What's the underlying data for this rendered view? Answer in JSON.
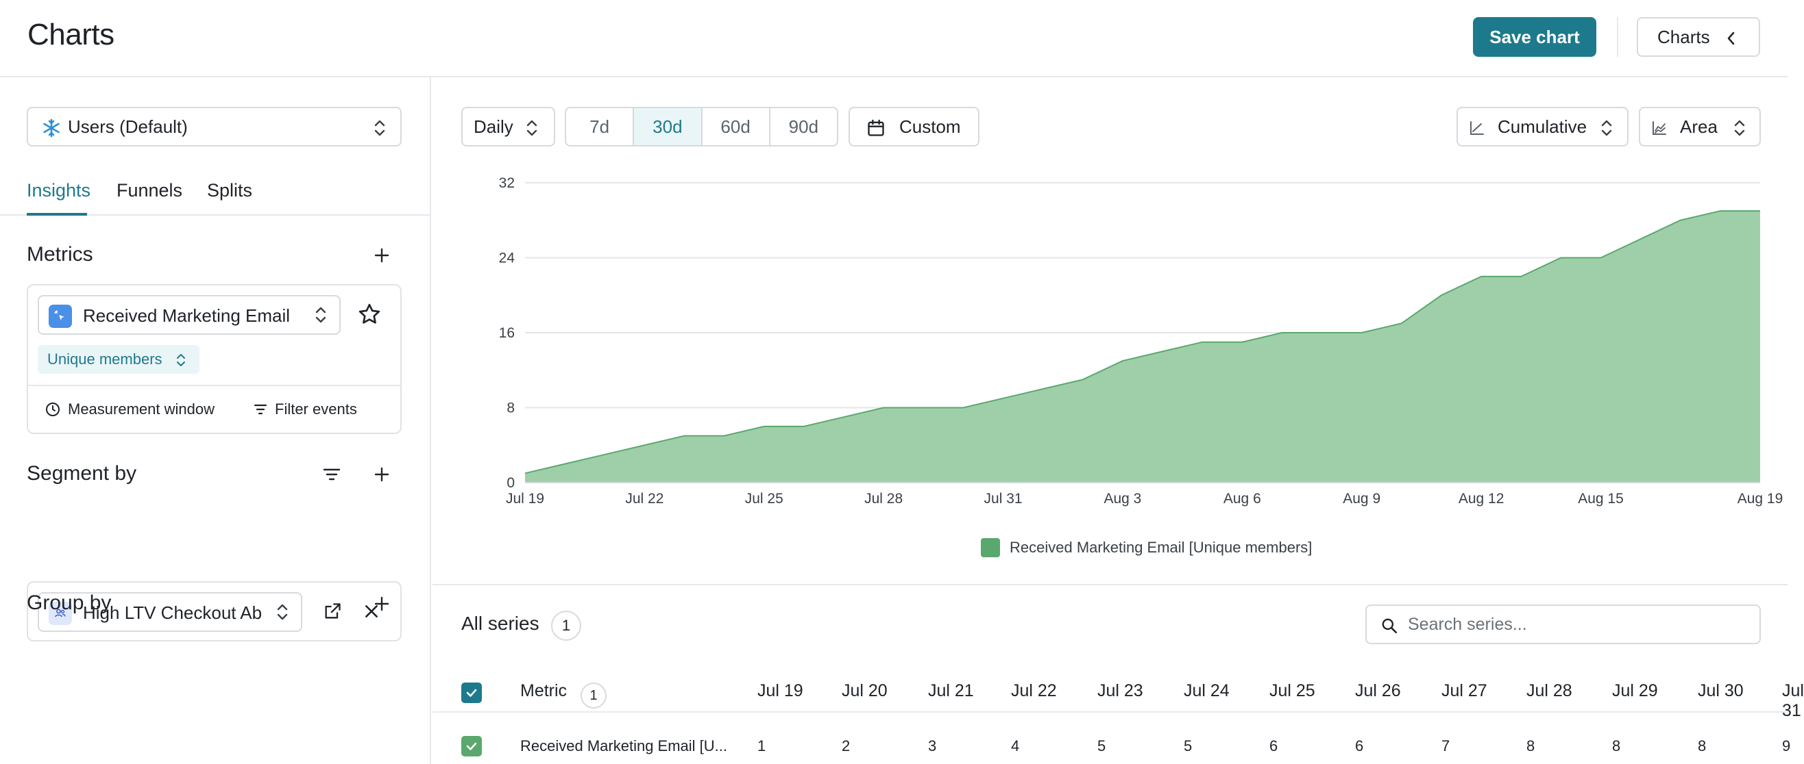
{
  "header": {
    "title": "Charts",
    "save_label": "Save chart",
    "charts_label": "Charts"
  },
  "sidebar": {
    "datasource": "Users (Default)",
    "tabs": [
      "Insights",
      "Funnels",
      "Splits"
    ],
    "active_tab": "Insights",
    "metrics": {
      "title": "Metrics",
      "metric_name": "Received Marketing Email",
      "aggregation": "Unique members",
      "measurement_window": "Measurement window",
      "filter_events": "Filter events"
    },
    "segment": {
      "title": "Segment by",
      "value": "High LTV Checkout Ab"
    },
    "group": {
      "title": "Group by"
    }
  },
  "toolbar": {
    "interval": "Daily",
    "ranges": [
      "7d",
      "30d",
      "60d",
      "90d"
    ],
    "active_range": "30d",
    "custom": "Custom",
    "mode": "Cumulative",
    "chart_type": "Area"
  },
  "chart_data": {
    "type": "area",
    "x": [
      "Jul 19",
      "Jul 20",
      "Jul 21",
      "Jul 22",
      "Jul 23",
      "Jul 24",
      "Jul 25",
      "Jul 26",
      "Jul 27",
      "Jul 28",
      "Jul 29",
      "Jul 30",
      "Jul 31",
      "Aug 1",
      "Aug 2",
      "Aug 3",
      "Aug 4",
      "Aug 5",
      "Aug 6",
      "Aug 7",
      "Aug 8",
      "Aug 9",
      "Aug 10",
      "Aug 11",
      "Aug 12",
      "Aug 13",
      "Aug 14",
      "Aug 15",
      "Aug 16",
      "Aug 17",
      "Aug 18",
      "Aug 19"
    ],
    "x_ticks": [
      "Jul 19",
      "Jul 22",
      "Jul 25",
      "Jul 28",
      "Jul 31",
      "Aug 3",
      "Aug 6",
      "Aug 9",
      "Aug 12",
      "Aug 15",
      "Aug 19"
    ],
    "y_ticks": [
      "0",
      "8",
      "16",
      "24",
      "32"
    ],
    "ylim": [
      0,
      32
    ],
    "series": [
      {
        "name": "Received Marketing Email [Unique members]",
        "color": "#9fcfa8",
        "line_color": "#5aa86e",
        "values": [
          1,
          2,
          3,
          4,
          5,
          5,
          6,
          6,
          7,
          8,
          8,
          8,
          9,
          10,
          11,
          13,
          14,
          15,
          15,
          16,
          16,
          16,
          17,
          20,
          22,
          22,
          24,
          24,
          26,
          28,
          29,
          29
        ]
      }
    ],
    "legend": "bottom-center",
    "grid": true
  },
  "table": {
    "title": "All series",
    "count": "1",
    "search_placeholder": "Search series...",
    "metric_header": "Metric",
    "metric_count": "1",
    "date_headers": [
      "Jul 19",
      "Jul 20",
      "Jul 21",
      "Jul 22",
      "Jul 23",
      "Jul 24",
      "Jul 25",
      "Jul 26",
      "Jul 27",
      "Jul 28",
      "Jul 29",
      "Jul 30",
      "Jul 31"
    ],
    "row": {
      "name": "Received Marketing Email [U...",
      "values": [
        "1",
        "2",
        "3",
        "4",
        "5",
        "5",
        "6",
        "6",
        "7",
        "8",
        "8",
        "8",
        "9"
      ]
    }
  }
}
